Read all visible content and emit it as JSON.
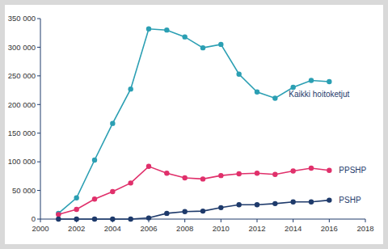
{
  "chart_data": {
    "type": "line",
    "x": [
      2001,
      2002,
      2003,
      2004,
      2005,
      2006,
      2007,
      2008,
      2009,
      2010,
      2011,
      2012,
      2013,
      2014,
      2015,
      2016
    ],
    "series": [
      {
        "name": "Kaikki hoitoketjut",
        "color": "#2b9fb3",
        "marker": "circle",
        "values": [
          10000,
          37000,
          103000,
          167000,
          227000,
          332000,
          330000,
          318000,
          299000,
          305000,
          253000,
          222000,
          211000,
          230000,
          242000,
          240000
        ]
      },
      {
        "name": "PPSHP",
        "color": "#e0306b",
        "marker": "circle",
        "values": [
          8000,
          17000,
          35000,
          48000,
          63000,
          92000,
          80000,
          72000,
          70000,
          76000,
          79000,
          80000,
          78000,
          84000,
          89000,
          85000
        ]
      },
      {
        "name": "PSHP",
        "color": "#1e3a6b",
        "marker": "circle",
        "values": [
          0,
          0,
          0,
          0,
          0,
          2000,
          10000,
          13000,
          14000,
          20000,
          25000,
          25000,
          27000,
          30000,
          30000,
          33000
        ]
      }
    ],
    "xlim": [
      2000,
      2018
    ],
    "xticks": [
      2000,
      2002,
      2004,
      2006,
      2008,
      2010,
      2012,
      2014,
      2016,
      2018
    ],
    "ylim": [
      0,
      350000
    ],
    "yticks": [
      0,
      {
        "value": 50000,
        "label": "50 000"
      },
      {
        "value": 100000,
        "label": "100 000"
      },
      {
        "value": 150000,
        "label": "150 000"
      },
      {
        "value": 200000,
        "label": "200 000"
      },
      {
        "value": 250000,
        "label": "250 000"
      },
      {
        "value": 300000,
        "label": "300 000"
      },
      {
        "value": 350000,
        "label": "350 000"
      }
    ],
    "grid": false
  }
}
